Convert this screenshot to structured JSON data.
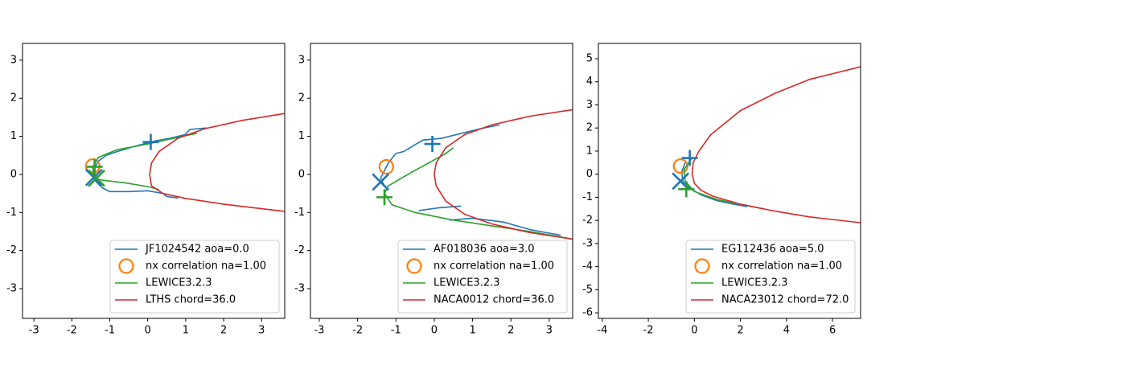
{
  "chart_data": [
    {
      "type": "line",
      "legend": "lower right",
      "xlim": [
        -3.3,
        3.61
      ],
      "ylim": [
        -3.78,
        3.44
      ],
      "xticks": [
        -3,
        -2,
        -1,
        0,
        1,
        2,
        3
      ],
      "yticks": [
        -3,
        -2,
        -1,
        0,
        1,
        2,
        3
      ],
      "series": [
        {
          "name": "JF1024542 aoa=0.0",
          "color": "#1f77b4",
          "x": [
            1.55,
            1.1,
            1.0,
            0.6,
            0.2,
            -0.3,
            -0.8,
            -1.1,
            -1.3,
            -1.45,
            -1.4,
            -1.2,
            -1.0,
            -0.5,
            0,
            0.4,
            0.5,
            0.8
          ],
          "y": [
            1.22,
            1.18,
            1.05,
            0.95,
            0.88,
            0.75,
            0.6,
            0.5,
            0.35,
            0.1,
            -0.15,
            -0.35,
            -0.45,
            -0.45,
            -0.43,
            -0.5,
            -0.58,
            -0.62
          ]
        },
        {
          "name": "nx correlation na=1.00",
          "color": "#ff7f0e",
          "marker": "o",
          "x": [
            -1.45
          ],
          "y": [
            0.22
          ]
        },
        {
          "name": "LEWICE3.2.3",
          "color": "#2ca02c",
          "x": [
            1.3,
            0.6,
            0,
            -0.8,
            -1.3,
            -1.45,
            -1.4,
            -1.2,
            -0.6,
            0,
            0.3
          ],
          "y": [
            1.08,
            0.93,
            0.8,
            0.65,
            0.45,
            0.2,
            -0.1,
            -0.15,
            -0.22,
            -0.32,
            -0.4
          ]
        },
        {
          "name": "LTHS chord=36.0",
          "color": "#d62728",
          "x": [
            3.61,
            2.5,
            1.5,
            0.8,
            0.3,
            0.1,
            0.05,
            0.1,
            0.4,
            1,
            2,
            3,
            3.61
          ],
          "y": [
            1.6,
            1.42,
            1.2,
            0.95,
            0.6,
            0.3,
            0,
            -0.3,
            -0.5,
            -0.63,
            -0.78,
            -0.9,
            -0.97
          ]
        },
        {
          "color": "#1f77b4",
          "marker": "+",
          "x": [
            0.08
          ],
          "y": [
            0.85
          ]
        },
        {
          "color": "#1f77b4",
          "marker": "x",
          "x": [
            -1.42
          ],
          "y": [
            -0.08
          ]
        },
        {
          "color": "#2ca02c",
          "marker": "+",
          "x": [
            -1.4
          ],
          "y": [
            0.2
          ]
        },
        {
          "color": "#2ca02c",
          "marker": "x",
          "x": [
            -1.35
          ],
          "y": [
            -0.1
          ]
        }
      ]
    },
    {
      "type": "line",
      "legend": "lower right",
      "xlim": [
        -3.23,
        3.61
      ],
      "ylim": [
        -3.78,
        3.44
      ],
      "xticks": [
        -3,
        -2,
        -1,
        0,
        1,
        2,
        3
      ],
      "yticks": [
        -3,
        -2,
        -1,
        0,
        1,
        2,
        3
      ],
      "series": [
        {
          "name": "AF018036 aoa=3.0",
          "color": "#1f77b4",
          "x": [
            1.7,
            1.2,
            0.6,
            0.2,
            -0.3,
            -0.8,
            -1.0,
            -1.2,
            -1.4,
            -1.3,
            null,
            -0.4,
            0.1,
            0.7,
            null,
            0.4,
            1.0,
            1.8,
            2.5,
            3.3
          ],
          "y": [
            1.3,
            1.2,
            1.05,
            0.95,
            0.9,
            0.6,
            0.55,
            0.3,
            -0.1,
            -0.3,
            null,
            -0.95,
            -0.88,
            -0.83,
            null,
            -1.2,
            -1.15,
            -1.25,
            -1.45,
            -1.6
          ]
        },
        {
          "name": "nx correlation na=1.00",
          "color": "#ff7f0e",
          "marker": "o",
          "x": [
            -1.25
          ],
          "y": [
            0.2
          ]
        },
        {
          "name": "LEWICE3.2.3",
          "color": "#2ca02c",
          "x": [
            0.5,
            0.3,
            -0.6,
            -1.2,
            -1.3,
            -1.1,
            -0.5,
            0.5,
            1.5,
            2.5,
            3.61
          ],
          "y": [
            0.7,
            0.55,
            0.05,
            -0.3,
            -0.5,
            -0.8,
            -1.0,
            -1.2,
            -1.35,
            -1.5,
            -1.7
          ]
        },
        {
          "name": "NACA0012 chord=36.0",
          "color": "#d62728",
          "x": [
            3.61,
            2.5,
            1.5,
            0.8,
            0.3,
            0.05,
            0,
            0.05,
            0.3,
            0.8,
            1.5,
            2.5,
            3.61
          ],
          "y": [
            1.7,
            1.53,
            1.3,
            1.05,
            0.7,
            0.3,
            0,
            -0.3,
            -0.7,
            -1.05,
            -1.3,
            -1.53,
            -1.7
          ]
        },
        {
          "color": "#1f77b4",
          "marker": "+",
          "x": [
            -0.05
          ],
          "y": [
            0.8
          ]
        },
        {
          "color": "#1f77b4",
          "marker": "x",
          "x": [
            -1.4
          ],
          "y": [
            -0.2
          ]
        },
        {
          "color": "#2ca02c",
          "marker": "+",
          "x": [
            -1.3
          ],
          "y": [
            -0.6
          ]
        }
      ]
    },
    {
      "type": "line",
      "legend": "lower right",
      "xlim": [
        -4.17,
        7.22
      ],
      "ylim": [
        -6.24,
        5.66
      ],
      "xticks": [
        -4,
        -2,
        0,
        2,
        4,
        6
      ],
      "yticks": [
        -6,
        -5,
        -4,
        -3,
        -2,
        -1,
        0,
        1,
        2,
        3,
        4,
        5
      ],
      "series": [
        {
          "name": "EG112436 aoa=5.0",
          "color": "#1f77b4",
          "x": [
            -0.4,
            -0.55,
            -0.5,
            -0.2,
            0.3,
            1,
            1.7,
            2.3
          ],
          "y": [
            0.5,
            0.1,
            -0.3,
            -0.6,
            -0.9,
            -1.15,
            -1.3,
            -1.4
          ]
        },
        {
          "name": "nx correlation na=1.00",
          "color": "#ff7f0e",
          "marker": "o",
          "x": [
            -0.6
          ],
          "y": [
            0.35
          ]
        },
        {
          "name": "LEWICE3.2.3",
          "color": "#2ca02c",
          "x": [
            -0.1,
            -0.45,
            -0.4,
            0,
            1,
            2,
            3
          ],
          "y": [
            0.7,
            0.2,
            -0.3,
            -0.75,
            -1.1,
            -1.3,
            -1.5
          ]
        },
        {
          "name": "NACA23012 chord=72.0",
          "color": "#d62728",
          "x": [
            7.22,
            5,
            3.5,
            2,
            0.7,
            0.2,
            -0.05,
            -0.1,
            0,
            0.3,
            0.8,
            2,
            3.5,
            5,
            7.22
          ],
          "y": [
            4.65,
            4.1,
            3.5,
            2.75,
            1.7,
            1.0,
            0.5,
            0,
            -0.4,
            -0.7,
            -0.95,
            -1.3,
            -1.6,
            -1.85,
            -2.1
          ]
        },
        {
          "color": "#1f77b4",
          "marker": "+",
          "x": [
            -0.2
          ],
          "y": [
            0.7
          ]
        },
        {
          "color": "#1f77b4",
          "marker": "x",
          "x": [
            -0.6
          ],
          "y": [
            -0.3
          ]
        },
        {
          "color": "#2ca02c",
          "marker": "+",
          "x": [
            -0.35
          ],
          "y": [
            -0.65
          ]
        }
      ]
    }
  ]
}
